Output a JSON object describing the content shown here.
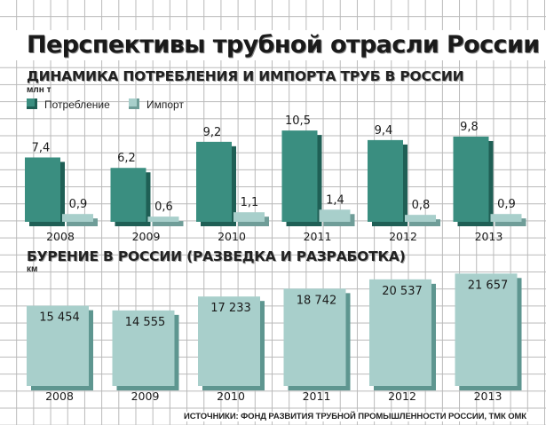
{
  "title": "Перспективы трубной отрасли России",
  "colors": {
    "consumption": "#3a8e80",
    "consumption_shade": "#1f5f55",
    "import": "#a8cfcb",
    "import_shade": "#6f9d98",
    "drilling": "#a8cfcb",
    "drilling_shade": "#5e9690"
  },
  "chart_data": [
    {
      "type": "bar",
      "title": "ДИНАМИКА ПОТРЕБЛЕНИЯ И ИМПОРТА ТРУБ В РОССИИ",
      "ylabel": "млн т",
      "categories": [
        "2008",
        "2009",
        "2010",
        "2011",
        "2012",
        "2013"
      ],
      "series": [
        {
          "name": "Потребление",
          "values": [
            7.4,
            6.2,
            9.2,
            10.5,
            9.4,
            9.8
          ],
          "labels": [
            "7,4",
            "6,2",
            "9,2",
            "10,5",
            "9,4",
            "9,8"
          ]
        },
        {
          "name": "Импорт",
          "values": [
            0.9,
            0.6,
            1.1,
            1.4,
            0.8,
            0.9
          ],
          "labels": [
            "0,9",
            "0,6",
            "1,1",
            "1,4",
            "0,8",
            "0,9"
          ]
        }
      ],
      "legend": "top-left",
      "grid": true
    },
    {
      "type": "bar",
      "title": "БУРЕНИЕ В РОССИИ (РАЗВЕДКА И РАЗРАБОТКА)",
      "ylabel": "км",
      "categories": [
        "2008",
        "2009",
        "2010",
        "2011",
        "2012",
        "2013"
      ],
      "values": [
        15454,
        14555,
        17233,
        18742,
        20537,
        21657
      ],
      "labels": [
        "15 454",
        "14 555",
        "17 233",
        "18 742",
        "20 537",
        "21 657"
      ],
      "grid": true
    }
  ],
  "source": "ИСТОЧНИКИ: ФОНД РАЗВИТИЯ ТРУБНОЙ ПРОМЫШЛЕННОСТИ РОССИИ, ТМК ОМК"
}
